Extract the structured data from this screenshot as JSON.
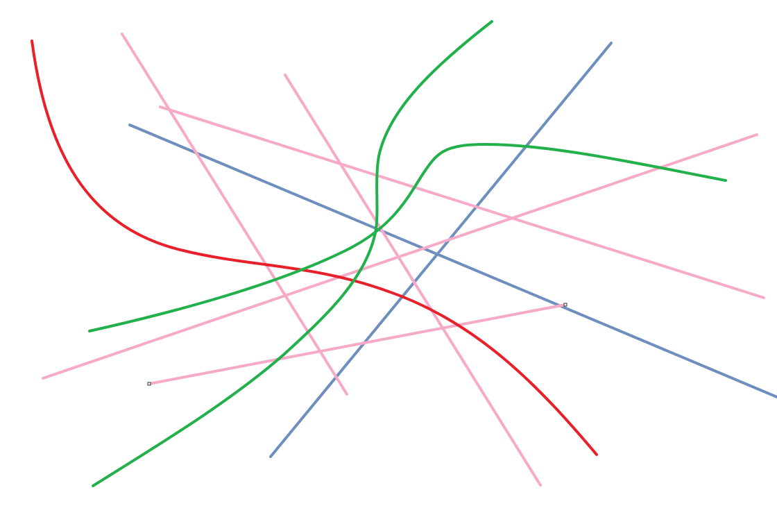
{
  "canvas": {
    "background": "#ffffff"
  },
  "colors": {
    "red": "#e8202a",
    "green": "#22b04b",
    "blue": "#6e8fbd",
    "pink": "#f7aac8"
  },
  "selection": {
    "selected_stroke": "pink-line-5",
    "handle_shape": "square"
  }
}
